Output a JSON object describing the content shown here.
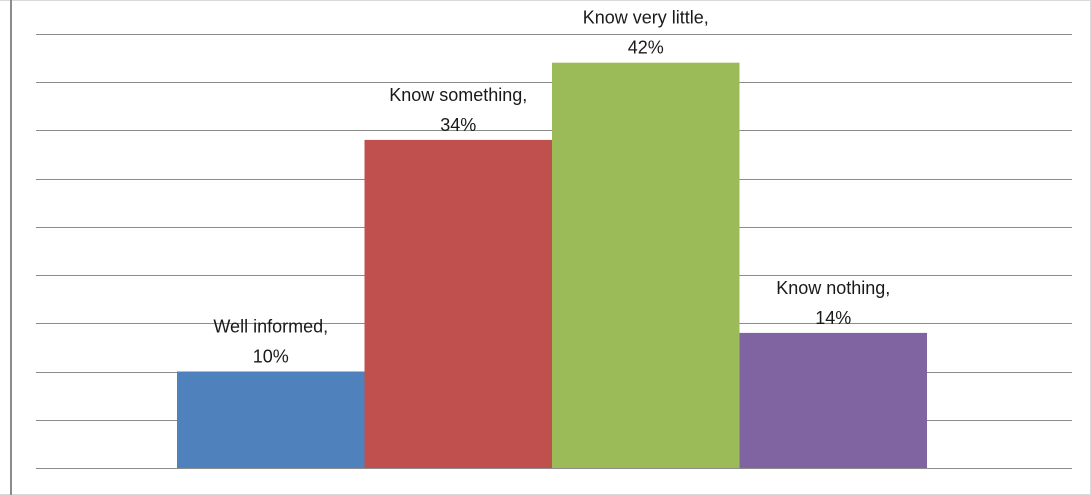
{
  "chart_data": {
    "type": "bar",
    "categories": [
      "Well informed",
      "Know something",
      "Know very little",
      "Know nothing"
    ],
    "values": [
      10,
      34,
      42,
      14
    ],
    "value_suffix": "%",
    "colors": [
      "#4f81bd",
      "#c0504d",
      "#9bbb59",
      "#8064a2"
    ],
    "data_labels": [
      [
        "Well informed,",
        "10%"
      ],
      [
        "Know something,",
        "34%"
      ],
      [
        "Know very little,",
        "42%"
      ],
      [
        "Know nothing,",
        "14%"
      ]
    ],
    "title": "",
    "xlabel": "",
    "ylabel": "",
    "ylim": [
      0,
      45
    ],
    "grid": true,
    "legend": "none"
  }
}
